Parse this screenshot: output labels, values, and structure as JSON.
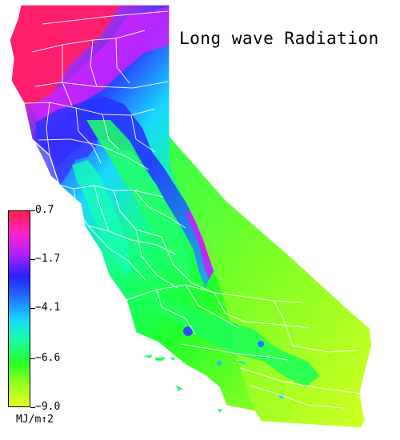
{
  "map": {
    "title": "Long wave Radiation",
    "colors": {
      "background": "#ffffff",
      "county_lines": "#ffffff",
      "high": "#ff1f4d",
      "magenta": "#e020ff",
      "blue": "#2020f0",
      "cyan": "#19d8ff",
      "green": "#1fff55",
      "light_green": "#78ff20",
      "low": "#e8ff20"
    }
  },
  "legend": {
    "unit": "MJ/m↑2",
    "ticks": [
      {
        "label": "0.7",
        "value": 0.7
      },
      {
        "label": "−1.7",
        "value": -1.7
      },
      {
        "label": "−4.1",
        "value": -4.1
      },
      {
        "label": "−6.6",
        "value": -6.6
      },
      {
        "label": "−9.0",
        "value": -9.0
      }
    ],
    "range": [
      -9.0,
      0.7
    ],
    "gradient": [
      "#ff1f4d",
      "#ff22c8",
      "#b020ff",
      "#2a20ff",
      "#1f73ff",
      "#17d8ff",
      "#19ff9a",
      "#24ff25",
      "#98ff20",
      "#e6ff20"
    ]
  }
}
